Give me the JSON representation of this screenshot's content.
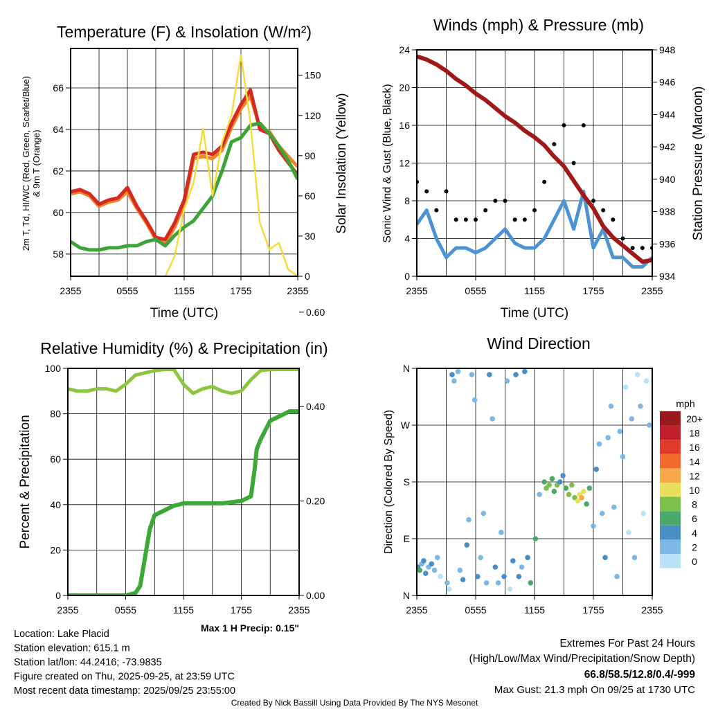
{
  "colors": {
    "temp": "#d42a20",
    "dewpoint": "#3ca336",
    "temp9m": "#f0852d",
    "solar": "#f5dc3c",
    "wind": "#4b93d2",
    "gust": "#000000",
    "pressure": "#a01818",
    "rh": "#8cc63e",
    "precip": "#3aa935",
    "highlight_green": "#2b9a2b",
    "extremes_red": "#d0202a",
    "credit": "#888888"
  },
  "chart_data": [
    {
      "type": "line",
      "title": "Temperature (F) & Insolation (W/m²)",
      "xlabel": "Time (UTC)",
      "ylabel": "2m T, Td, HI/WC (Red, Green, Scarlet/Blue)",
      "ylabel2": "& 9m T (Orange)",
      "y2label": "Solar Insolation (Yellow)",
      "x_ticks": [
        "2355",
        "0555",
        "1155",
        "1755",
        "2355"
      ],
      "xlim_hours": [
        0,
        24
      ],
      "ylim": [
        56.93,
        67.9
      ],
      "y_ticks": [
        "58",
        "60",
        "62",
        "64",
        "66"
      ],
      "y2lim": [
        0,
        170
      ],
      "y2_ticks": [
        "0",
        "30",
        "60",
        "90",
        "120",
        "150"
      ],
      "x_hours": [
        0,
        1,
        2,
        3,
        4,
        5,
        6,
        7,
        8,
        9,
        10,
        11,
        12,
        13,
        14,
        15,
        16,
        17,
        18,
        19,
        20,
        21,
        22,
        23,
        24
      ],
      "series": [
        {
          "name": "9m T",
          "color_key": "temp9m",
          "axis": "left",
          "values": [
            60.9,
            61.0,
            60.8,
            60.3,
            60.5,
            60.6,
            61.0,
            60.2,
            59.5,
            58.7,
            58.5,
            59.3,
            60.4,
            62.6,
            62.7,
            62.6,
            63.0,
            64.1,
            65.0,
            65.6,
            64.1,
            63.9,
            63.2,
            62.7,
            62.2
          ]
        },
        {
          "name": "2m T",
          "color_key": "temp",
          "axis": "left",
          "values": [
            61.0,
            61.1,
            60.9,
            60.4,
            60.6,
            60.7,
            61.2,
            60.3,
            59.6,
            58.8,
            58.7,
            59.5,
            60.6,
            62.8,
            62.9,
            62.8,
            63.2,
            64.3,
            65.2,
            65.9,
            64.0,
            63.8,
            63.0,
            62.4,
            61.8
          ]
        },
        {
          "name": "Td",
          "color_key": "dewpoint",
          "axis": "left",
          "values": [
            58.6,
            58.3,
            58.2,
            58.2,
            58.3,
            58.3,
            58.4,
            58.4,
            58.6,
            58.7,
            58.4,
            58.9,
            59.3,
            59.6,
            60.2,
            60.8,
            62.0,
            63.4,
            63.6,
            64.2,
            64.3,
            63.8,
            63.2,
            62.5,
            61.6
          ]
        },
        {
          "name": "Solar Insolation",
          "color_key": "solar",
          "axis": "right",
          "values": [
            0,
            0,
            0,
            0,
            0,
            0,
            0,
            0,
            0,
            0,
            0,
            15,
            50,
            70,
            110,
            60,
            100,
            120,
            165,
            115,
            40,
            20,
            25,
            5,
            0
          ]
        }
      ]
    },
    {
      "type": "line",
      "title": "Winds (mph) & Pressure (mb)",
      "xlabel": "Time (UTC)",
      "ylabel": "Sonic Wind & Gust (Blue, Black)",
      "y2label": "Station Pressure (Maroon)",
      "x_ticks": [
        "2355",
        "0555",
        "1155",
        "1755",
        "2355"
      ],
      "xlim_hours": [
        0,
        24
      ],
      "ylim": [
        0,
        24
      ],
      "y_ticks": [
        "0",
        "4",
        "8",
        "12",
        "16",
        "20",
        "24"
      ],
      "y2lim": [
        934,
        948
      ],
      "y2_ticks": [
        "934",
        "936",
        "938",
        "940",
        "942",
        "944",
        "946",
        "948"
      ],
      "x_hours": [
        0,
        1,
        2,
        3,
        4,
        5,
        6,
        7,
        8,
        9,
        10,
        11,
        12,
        13,
        14,
        15,
        16,
        17,
        18,
        19,
        20,
        21,
        22,
        23,
        24
      ],
      "series": [
        {
          "name": "Sonic Wind",
          "color_key": "wind",
          "axis": "left",
          "kind": "line",
          "values": [
            5.5,
            7,
            4,
            2,
            3,
            3,
            2.5,
            3,
            4,
            5,
            3.5,
            3,
            3,
            4,
            6,
            8,
            5,
            9,
            3,
            5,
            2,
            2,
            1,
            1,
            2
          ]
        },
        {
          "name": "Gust",
          "color_key": "gust",
          "axis": "left",
          "kind": "dots",
          "values": [
            10,
            9,
            7,
            9,
            6,
            6,
            6,
            7,
            8,
            8,
            6,
            6,
            7,
            10,
            14,
            16,
            12,
            16,
            8,
            7,
            6,
            4,
            3,
            3,
            3
          ]
        },
        {
          "name": "Station Pressure",
          "color_key": "pressure",
          "axis": "right",
          "kind": "line",
          "values": [
            947.6,
            947.4,
            947.1,
            946.7,
            946.2,
            945.8,
            945.3,
            944.9,
            944.4,
            943.9,
            943.5,
            943.0,
            942.6,
            942.1,
            941.4,
            940.8,
            939.9,
            939.0,
            938.2,
            937.1,
            936.4,
            935.9,
            935.4,
            934.9,
            935.0
          ]
        }
      ]
    },
    {
      "type": "line",
      "title": "Relative Humidity (%) & Precipitation (in)",
      "ylabel": "Percent & Precipitation",
      "x_ticks": [
        "2355",
        "0555",
        "1155",
        "1755",
        "2355"
      ],
      "xlim_hours": [
        0,
        24
      ],
      "ylim": [
        0,
        100
      ],
      "y_ticks": [
        "0",
        "20",
        "40",
        "60",
        "80",
        "100"
      ],
      "y2lim": [
        0,
        0.481
      ],
      "y2_ticks": [
        "0.00",
        "0.20",
        "0.40",
        "0.60"
      ],
      "series": [
        {
          "name": "Relative Humidity",
          "color_key": "rh",
          "axis": "left",
          "x_hours": [
            0,
            1,
            2,
            3,
            4,
            5,
            6,
            7,
            8,
            9,
            10,
            11,
            12,
            13,
            14,
            15,
            16,
            17,
            18,
            19,
            20,
            21,
            22,
            23,
            24
          ],
          "values": [
            91,
            90,
            90,
            91,
            91,
            90,
            93,
            97,
            98,
            99,
            99.5,
            99.5,
            93,
            89,
            91,
            92,
            90,
            89,
            90,
            95,
            99,
            99.5,
            99.5,
            99.5,
            99.5
          ]
        },
        {
          "name": "Precipitation",
          "color_key": "precip",
          "axis": "right",
          "x_hours": [
            0,
            6,
            7,
            7.5,
            8,
            8.5,
            9,
            10,
            11,
            12,
            14,
            16,
            18,
            19,
            19.4,
            19.6,
            20,
            21,
            22,
            23,
            24
          ],
          "values": [
            0,
            0,
            0.005,
            0.02,
            0.08,
            0.14,
            0.17,
            0.18,
            0.19,
            0.195,
            0.195,
            0.195,
            0.2,
            0.21,
            0.27,
            0.31,
            0.33,
            0.37,
            0.38,
            0.39,
            0.39
          ]
        }
      ]
    },
    {
      "type": "scatter",
      "title": "Wind Direction",
      "ylabel": "Direction (Colored By Speed)",
      "x_ticks": [
        "2355",
        "0555",
        "1155",
        "1755",
        "2355"
      ],
      "xlim_hours": [
        0,
        24
      ],
      "ylim_degrees": [
        0,
        360
      ],
      "y_ticks": [
        "N",
        "E",
        "S",
        "W",
        "N"
      ],
      "legend": {
        "title": "mph",
        "labels": [
          "20+",
          "18",
          "16",
          "14",
          "12",
          "10",
          "8",
          "6",
          "4",
          "2",
          "0"
        ],
        "colors": [
          "#9a1a1e",
          "#bf1e2a",
          "#e03a2d",
          "#f26a2b",
          "#f7a94a",
          "#e8e05a",
          "#7bc04a",
          "#4aa86a",
          "#4a8ec6",
          "#7db8e4",
          "#b8e2f6"
        ]
      },
      "points_hour_deg_mph": [
        [
          0.1,
          45,
          4
        ],
        [
          0.3,
          40,
          6
        ],
        [
          0.5,
          50,
          3
        ],
        [
          0.7,
          55,
          5
        ],
        [
          0.9,
          35,
          4
        ],
        [
          1.2,
          45,
          3
        ],
        [
          1.5,
          50,
          4
        ],
        [
          1.8,
          40,
          3
        ],
        [
          2.1,
          60,
          2
        ],
        [
          2.4,
          30,
          1
        ],
        [
          3.1,
          20,
          2
        ],
        [
          3.3,
          10,
          1
        ],
        [
          3.6,
          350,
          4
        ],
        [
          3.8,
          340,
          3
        ],
        [
          4.2,
          355,
          2
        ],
        [
          4.4,
          40,
          3
        ],
        [
          4.7,
          25,
          4
        ],
        [
          5.1,
          80,
          4
        ],
        [
          5.3,
          120,
          3
        ],
        [
          5.6,
          350,
          3
        ],
        [
          5.9,
          310,
          3
        ],
        [
          6.2,
          30,
          4
        ],
        [
          6.5,
          60,
          3
        ],
        [
          6.8,
          130,
          3
        ],
        [
          7.1,
          20,
          2
        ],
        [
          7.4,
          350,
          4
        ],
        [
          7.7,
          280,
          3
        ],
        [
          8.0,
          45,
          4
        ],
        [
          8.3,
          20,
          3
        ],
        [
          8.6,
          100,
          3
        ],
        [
          8.9,
          30,
          4
        ],
        [
          9.2,
          340,
          3
        ],
        [
          9.5,
          10,
          1
        ],
        [
          9.8,
          55,
          4
        ],
        [
          10.1,
          350,
          5
        ],
        [
          10.4,
          30,
          4
        ],
        [
          10.7,
          45,
          3
        ],
        [
          11.0,
          355,
          4
        ],
        [
          11.3,
          60,
          5
        ],
        [
          11.6,
          20,
          6
        ],
        [
          12.1,
          90,
          6
        ],
        [
          12.5,
          160,
          3
        ],
        [
          13.0,
          180,
          7
        ],
        [
          13.2,
          170,
          8
        ],
        [
          13.5,
          175,
          9
        ],
        [
          13.8,
          185,
          6
        ],
        [
          14.0,
          165,
          7
        ],
        [
          14.3,
          175,
          8
        ],
        [
          14.6,
          180,
          5
        ],
        [
          14.9,
          190,
          4
        ],
        [
          15.2,
          170,
          7
        ],
        [
          15.5,
          160,
          8
        ],
        [
          15.8,
          175,
          9
        ],
        [
          16.1,
          155,
          8
        ],
        [
          16.4,
          150,
          10
        ],
        [
          16.6,
          160,
          11
        ],
        [
          16.8,
          155,
          12
        ],
        [
          17.0,
          165,
          10
        ],
        [
          17.3,
          145,
          7
        ],
        [
          17.6,
          170,
          6
        ],
        [
          18.0,
          110,
          3
        ],
        [
          18.3,
          200,
          4
        ],
        [
          18.6,
          240,
          3
        ],
        [
          18.9,
          130,
          2
        ],
        [
          19.2,
          60,
          4
        ],
        [
          19.5,
          250,
          3
        ],
        [
          19.8,
          300,
          2
        ],
        [
          20.1,
          140,
          3
        ],
        [
          20.4,
          30,
          2
        ],
        [
          20.7,
          260,
          3
        ],
        [
          21.0,
          220,
          2
        ],
        [
          21.3,
          330,
          1
        ],
        [
          21.6,
          100,
          1
        ],
        [
          21.9,
          280,
          2
        ],
        [
          22.2,
          60,
          3
        ],
        [
          22.5,
          350,
          1
        ],
        [
          22.8,
          300,
          2
        ],
        [
          23.1,
          130,
          1
        ],
        [
          23.4,
          340,
          1
        ],
        [
          23.7,
          270,
          3
        ]
      ]
    }
  ],
  "precip_note": "Max 1 H Precip: 0.15\"",
  "station_info": [
    "Location: Lake Placid",
    "Station elevation: 615.1 m",
    "Station lat/lon: 44.2416; -73.9835",
    "Figure created on Thu, 2025-09-25, at 23:59 UTC",
    "Most recent data timestamp: 2025/09/25 23:55:00"
  ],
  "extremes": {
    "heading": "Extremes For Past 24 Hours",
    "subheading": "(High/Low/Max Wind/Precipitation/Snow Depth)",
    "values": "66.8/58.5/12.8/0.4/-999",
    "max_gust": "Max Gust: 21.3 mph On 09/25 at 1730 UTC"
  },
  "credit": "Created By Nick Bassill Using Data Provided By The NYS Mesonet"
}
